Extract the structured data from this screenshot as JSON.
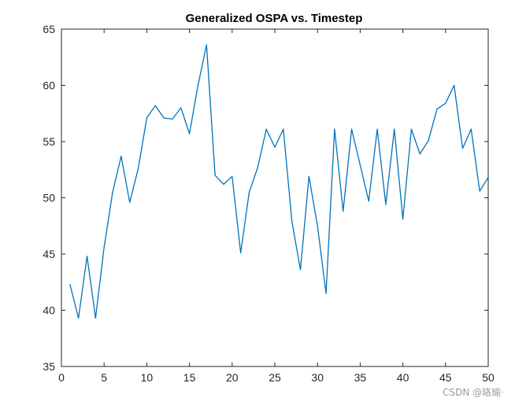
{
  "chart_data": {
    "type": "line",
    "title": "Generalized OSPA vs. Timestep",
    "xlabel": "",
    "ylabel": "",
    "xlim": [
      0,
      50
    ],
    "ylim": [
      35,
      65
    ],
    "xticks": [
      0,
      5,
      10,
      15,
      20,
      25,
      30,
      35,
      40,
      45,
      50
    ],
    "yticks": [
      35,
      40,
      45,
      50,
      55,
      60,
      65
    ],
    "grid": false,
    "series": [
      {
        "color": "#0072BD",
        "x": [
          1,
          2,
          3,
          4,
          5,
          6,
          7,
          8,
          9,
          10,
          11,
          12,
          13,
          14,
          15,
          16,
          17,
          18,
          19,
          20,
          21,
          22,
          23,
          24,
          25,
          26,
          27,
          28,
          29,
          30,
          31,
          32,
          33,
          34,
          35,
          36,
          37,
          38,
          39,
          40,
          41,
          42,
          43,
          44,
          45,
          46,
          47,
          48,
          49,
          50
        ],
        "y": [
          42.3,
          39.3,
          44.8,
          39.3,
          45.6,
          50.5,
          53.7,
          49.6,
          52.6,
          57.1,
          58.2,
          57.1,
          57.0,
          58.0,
          55.7,
          60.0,
          63.6,
          52.0,
          51.2,
          51.9,
          45.1,
          50.5,
          52.7,
          56.1,
          54.5,
          56.1,
          47.9,
          43.6,
          51.9,
          47.5,
          41.5,
          56.1,
          48.8,
          56.1,
          52.9,
          49.7,
          56.1,
          49.4,
          56.1,
          48.1,
          56.1,
          53.9,
          55.1,
          57.9,
          58.4,
          60.0,
          54.4,
          56.1,
          50.6,
          51.8
        ]
      }
    ]
  },
  "watermark": "CSDN @珞瑜·"
}
